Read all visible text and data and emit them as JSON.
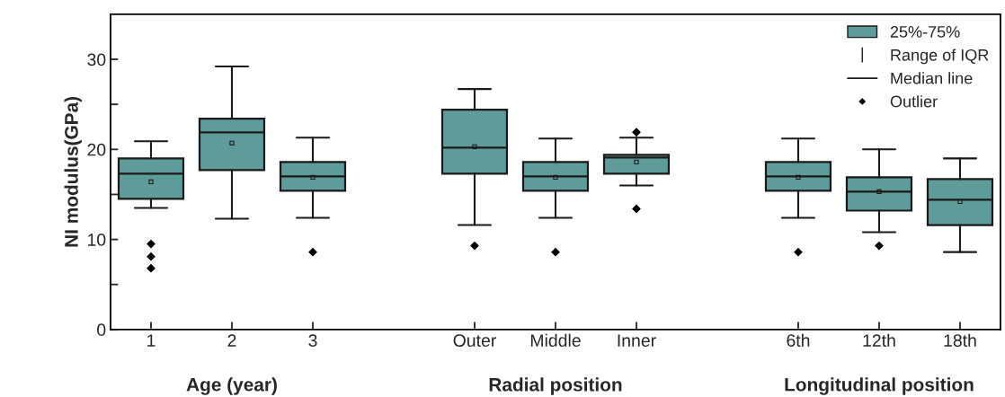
{
  "chart_data": {
    "type": "box",
    "ylabel": "NI modulus(GPa)",
    "categories": [
      "1",
      "2",
      "3",
      null,
      "Outer",
      "Middle",
      "Inner",
      null,
      "6th",
      "12th",
      "18th"
    ],
    "series": [
      {
        "name": "25%-75%",
        "color": "#5f9b98",
        "boxes": [
          {
            "low": 13.5,
            "q1": 14.5,
            "median": 17.3,
            "q3": 19.0,
            "high": 20.9,
            "mean": 16.4,
            "outliers": [
              9.5,
              8.1,
              6.8
            ]
          },
          {
            "low": 12.3,
            "q1": 17.7,
            "median": 21.9,
            "q3": 23.4,
            "high": 29.2,
            "mean": 20.7
          },
          {
            "low": 12.4,
            "q1": 15.4,
            "median": 17.0,
            "q3": 18.6,
            "high": 21.3,
            "mean": 16.9,
            "outliers": [
              8.6
            ]
          },
          null,
          {
            "low": 11.6,
            "q1": 17.3,
            "median": 20.2,
            "q3": 24.4,
            "high": 26.7,
            "mean": 20.3,
            "outliers": [
              9.3
            ]
          },
          {
            "low": 12.4,
            "q1": 15.4,
            "median": 17.0,
            "q3": 18.6,
            "high": 21.2,
            "mean": 16.9,
            "outliers": [
              8.6
            ]
          },
          {
            "low": 16.0,
            "q1": 17.3,
            "median": 19.1,
            "q3": 19.4,
            "high": 21.3,
            "mean": 18.6,
            "outliers": [
              21.9,
              13.4
            ]
          },
          null,
          {
            "low": 12.4,
            "q1": 15.4,
            "median": 17.0,
            "q3": 18.6,
            "high": 21.2,
            "mean": 16.9,
            "outliers": [
              8.6
            ]
          },
          {
            "low": 10.8,
            "q1": 13.2,
            "median": 15.3,
            "q3": 16.9,
            "high": 20.0,
            "mean": 15.3,
            "outliers": [
              9.3
            ]
          },
          {
            "low": 8.6,
            "q1": 11.6,
            "median": 14.4,
            "q3": 16.7,
            "high": 19.0,
            "mean": 14.2
          }
        ]
      }
    ],
    "ylim": [
      0,
      35
    ],
    "yticks": [
      0,
      {
        "value": 5,
        "label": null
      },
      10,
      {
        "value": 15,
        "label": null
      },
      20,
      {
        "value": 25,
        "label": null
      },
      30
    ],
    "legend": "top right",
    "annotations": [
      "Range of IQR",
      "Median line",
      "Outlier",
      "Age (year)",
      "Radial position",
      "Longitudinal position"
    ]
  }
}
